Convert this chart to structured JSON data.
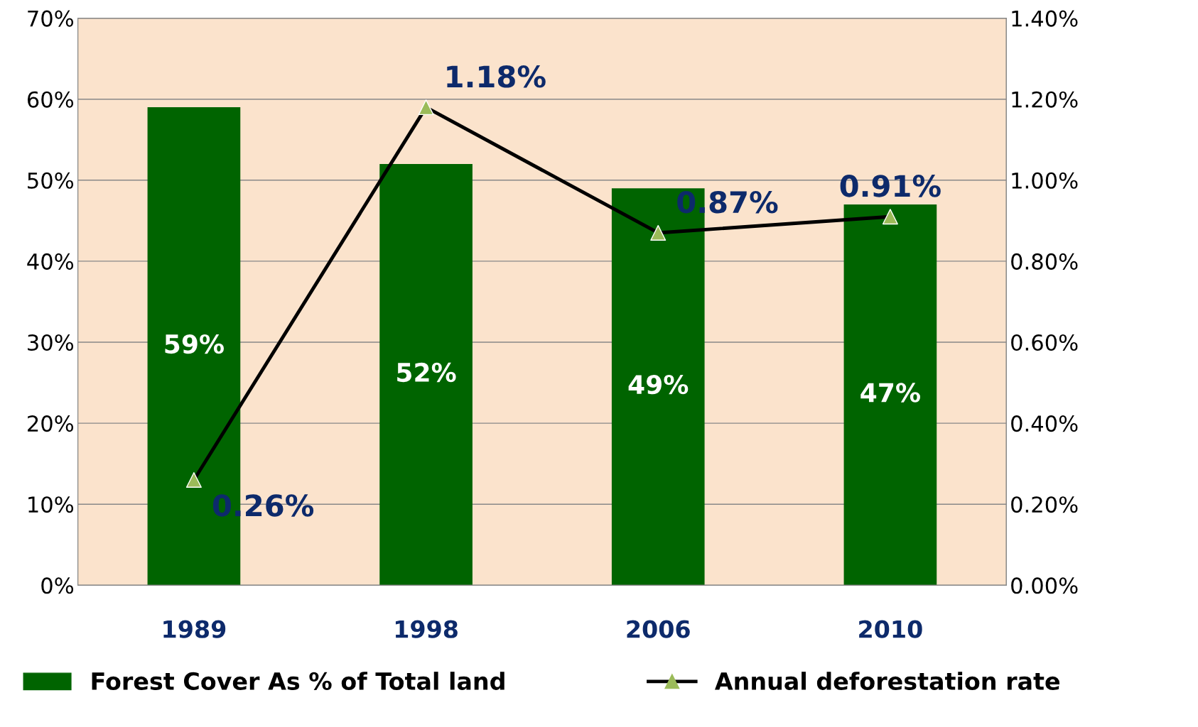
{
  "chart_data": {
    "type": "bar",
    "categories": [
      "1989",
      "1998",
      "2006",
      "2010"
    ],
    "series": [
      {
        "name": "Forest Cover As % of Total land",
        "color": "#006400",
        "values": [
          59,
          52,
          49,
          47
        ],
        "value_labels": [
          "59%",
          "52%",
          "49%",
          "47%"
        ]
      },
      {
        "name": "Annual deforestation rate",
        "type": "line",
        "axis": "y2",
        "color": "#000000",
        "colors": [
          "#9bbb59",
          "#9bbb59",
          "#9bbb59",
          "#9bbb59"
        ],
        "marker": "triangle",
        "values": [
          0.26,
          1.18,
          0.87,
          0.91
        ],
        "value_labels": [
          "0.26%",
          "1.18%",
          "0.87%",
          "0.91%"
        ]
      }
    ],
    "ylim": [
      0,
      70
    ],
    "yticks": [
      {
        "value": 0,
        "label": "0%"
      },
      {
        "value": 10,
        "label": "10%"
      },
      {
        "value": 20,
        "label": "20%"
      },
      {
        "value": 30,
        "label": "30%"
      },
      {
        "value": 40,
        "label": "40%"
      },
      {
        "value": 50,
        "label": "50%"
      },
      {
        "value": 60,
        "label": "60%"
      },
      {
        "value": 70,
        "label": "70%"
      }
    ],
    "y2lim": [
      0,
      1.4
    ],
    "y2ticks": [
      {
        "value": 0,
        "label": "0.00%"
      },
      {
        "value": 0.2,
        "label": "0.20%"
      },
      {
        "value": 0.4,
        "label": "0.40%"
      },
      {
        "value": 0.6,
        "label": "0.60%"
      },
      {
        "value": 0.8,
        "label": "0.80%"
      },
      {
        "value": 1.0,
        "label": "1.00%"
      },
      {
        "value": 1.2,
        "label": "1.20%"
      },
      {
        "value": 1.4,
        "label": "1.40%"
      }
    ],
    "grid": "y",
    "legend": "bottom"
  }
}
